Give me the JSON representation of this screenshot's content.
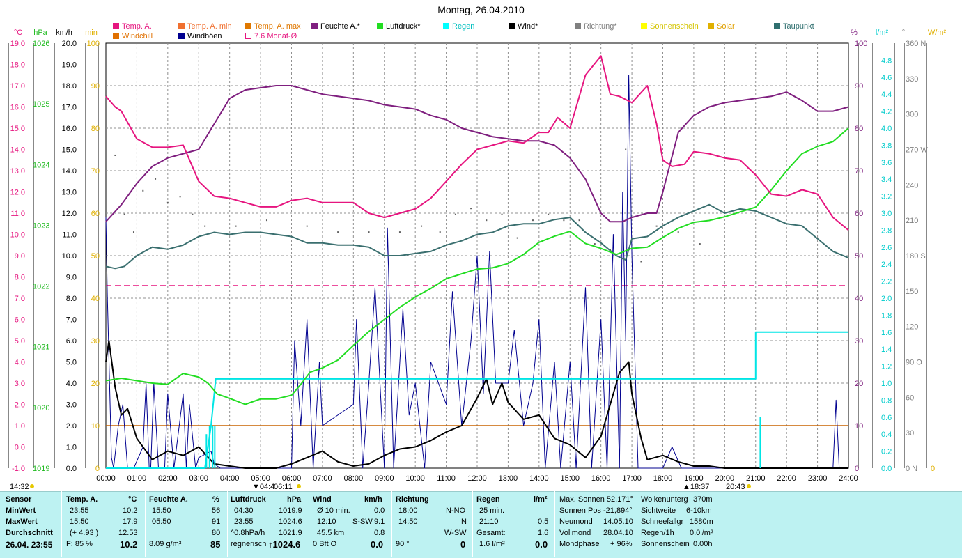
{
  "title": "Montag, 26.04.2010",
  "legend": [
    {
      "label": "Temp. A.",
      "color": "#e6157f"
    },
    {
      "label": "Temp. A. min",
      "color": "#f07030"
    },
    {
      "label": "Temp. A. max",
      "color": "#e07800"
    },
    {
      "label": "Feuchte A.*",
      "color": "#7f1f7f"
    },
    {
      "label": "Luftdruck*",
      "color": "#22dd22"
    },
    {
      "label": "Regen",
      "color": "#00ffff"
    },
    {
      "label": "Wind*",
      "color": "#000000"
    },
    {
      "label": "Richtung*",
      "color": "#808080"
    },
    {
      "label": "Sonnenschein",
      "color": "#ffff00"
    },
    {
      "label": "Solar",
      "color": "#e0b000"
    },
    {
      "label": "Taupunkt",
      "color": "#2f6f6f"
    },
    {
      "label": "Windchill",
      "color": "#e07000"
    },
    {
      "label": "Windböen",
      "color": "#000090"
    },
    {
      "label": "7.6 Monat-Ø",
      "color": "#e6157f"
    }
  ],
  "axis_units": {
    "celsius": "°C",
    "hpa": "hPa",
    "kmh": "km/h",
    "min": "min",
    "pct": "%",
    "lm2": "l/m²",
    "deg": "°",
    "wm2": "W/m²"
  },
  "time_marks": {
    "sunrise": "04:4",
    "sunrise2": "06:11",
    "sunset": "18:37",
    "moon": "20:43",
    "corner": "14:32"
  },
  "chart_data": {
    "type": "line",
    "x_ticks": [
      "00:00",
      "01:00",
      "02:00",
      "03:00",
      "04:00",
      "05:00",
      "06:00",
      "07:00",
      "08:00",
      "09:00",
      "10:00",
      "11:00",
      "12:00",
      "13:00",
      "14:00",
      "15:00",
      "16:00",
      "17:00",
      "18:00",
      "19:00",
      "20:00",
      "21:00",
      "22:00",
      "23:00",
      "24:00"
    ],
    "axes": {
      "celsius": {
        "range": [
          -1,
          19
        ],
        "ticks": [
          "19.0",
          "18.0",
          "17.0",
          "16.0",
          "15.0",
          "14.0",
          "13.0",
          "12.0",
          "11.0",
          "10.0",
          "9.0",
          "8.0",
          "7.0",
          "6.0",
          "5.0",
          "4.0",
          "3.0",
          "2.0",
          "1.0",
          "0.0",
          "-1.0"
        ]
      },
      "hpa": {
        "range": [
          1019,
          1026
        ],
        "ticks": [
          "1026",
          "1025",
          "1024",
          "1023",
          "1022",
          "1021",
          "1020",
          "1019"
        ]
      },
      "kmh": {
        "range": [
          0,
          20
        ],
        "ticks": [
          "20.0",
          "19.0",
          "18.0",
          "17.0",
          "16.0",
          "15.0",
          "14.0",
          "13.0",
          "12.0",
          "11.0",
          "10.0",
          "9.0",
          "8.0",
          "7.0",
          "6.0",
          "5.0",
          "4.0",
          "3.0",
          "2.0",
          "1.0",
          "0.0"
        ]
      },
      "min": {
        "range": [
          0,
          100
        ],
        "ticks": [
          "100",
          "90",
          "80",
          "70",
          "60",
          "50",
          "40",
          "30",
          "20",
          "10",
          "0"
        ]
      },
      "pct": {
        "range": [
          0,
          100
        ],
        "ticks": [
          "100",
          "90",
          "80",
          "70",
          "60",
          "50",
          "40",
          "30",
          "20",
          "10",
          "0"
        ]
      },
      "lm2": {
        "range": [
          0,
          5
        ],
        "ticks": [
          "4.8",
          "4.6",
          "4.4",
          "4.2",
          "4.0",
          "3.8",
          "3.6",
          "3.4",
          "3.2",
          "3.0",
          "2.8",
          "2.6",
          "2.4",
          "2.2",
          "2.0",
          "1.8",
          "1.6",
          "1.4",
          "1.2",
          "1.0",
          "0.8",
          "0.6",
          "0.4",
          "0.2",
          "0.0"
        ]
      },
      "deg": {
        "range": [
          0,
          360
        ],
        "ticks": [
          "360 N",
          "330",
          "300",
          "270 W",
          "240",
          "210",
          "180 S",
          "150",
          "120",
          "90 O",
          "60",
          "30",
          "0 N"
        ]
      },
      "wm2": {
        "range": [
          0,
          0
        ],
        "ticks": [
          "0"
        ]
      }
    },
    "series": [
      {
        "name": "Temp. A.",
        "axis": "celsius",
        "x": [
          0,
          0.3,
          0.5,
          1,
          1.5,
          2,
          2.5,
          3,
          3.5,
          4,
          4.5,
          5,
          5.5,
          6,
          6.5,
          7,
          7.5,
          8,
          8.5,
          9,
          9.5,
          10,
          10.5,
          11,
          11.5,
          12,
          12.5,
          13,
          13.5,
          14,
          14.3,
          14.6,
          15,
          15.5,
          16,
          16.3,
          16.6,
          17,
          17.5,
          17.8,
          18,
          18.3,
          18.7,
          19,
          19.5,
          20,
          20.5,
          21,
          21.5,
          22,
          22.5,
          23,
          23.5,
          24
        ],
        "y": [
          16.5,
          16.0,
          15.8,
          14.5,
          14.1,
          14.1,
          14.2,
          12.5,
          11.8,
          11.7,
          11.5,
          11.3,
          11.3,
          11.6,
          11.7,
          11.5,
          11.5,
          11.5,
          11.0,
          10.8,
          11.0,
          11.2,
          11.7,
          12.5,
          13.3,
          14.0,
          14.2,
          14.4,
          14.3,
          14.8,
          14.8,
          15.5,
          15.0,
          17.5,
          18.4,
          16.6,
          16.5,
          16.2,
          17.0,
          15.2,
          13.5,
          13.2,
          13.3,
          13.9,
          13.8,
          13.6,
          13.5,
          12.8,
          11.9,
          11.8,
          12.1,
          11.9,
          10.8,
          10.2
        ]
      },
      {
        "name": "Feuchte A.*",
        "axis": "pct",
        "x": [
          0,
          0.5,
          1,
          1.5,
          2,
          2.5,
          3,
          3.5,
          4,
          4.5,
          5,
          5.5,
          6,
          6.5,
          7,
          7.5,
          8,
          8.5,
          9,
          9.5,
          10,
          10.5,
          11,
          11.5,
          12,
          12.5,
          13,
          13.5,
          14,
          14.5,
          15,
          15.5,
          16,
          16.3,
          16.7,
          17,
          17.5,
          17.8,
          18,
          18.5,
          19,
          19.5,
          20,
          20.5,
          21,
          21.5,
          22,
          22.5,
          23,
          23.5,
          24
        ],
        "y": [
          58,
          62,
          67,
          71,
          73,
          74,
          75,
          81,
          87,
          89,
          89.5,
          90,
          90,
          89,
          88,
          87.5,
          87,
          86.5,
          85.5,
          85,
          84.5,
          83,
          82,
          80,
          79,
          78,
          77.5,
          77,
          77,
          76,
          73,
          68,
          60,
          58,
          58,
          59,
          60,
          60,
          65,
          79,
          83,
          85,
          86,
          86.5,
          87,
          87.5,
          88.5,
          86.5,
          84,
          84,
          85
        ]
      },
      {
        "name": "Luftdruck*",
        "axis": "hpa",
        "x": [
          0,
          0.5,
          1,
          1.5,
          2,
          2.5,
          3,
          3.3,
          3.6,
          4,
          4.5,
          5,
          5.5,
          6,
          6.3,
          6.6,
          7,
          7.5,
          8,
          8.5,
          9,
          9.5,
          10,
          10.5,
          11,
          11.5,
          12,
          12.5,
          13,
          13.5,
          14,
          14.5,
          15,
          15.5,
          16,
          16.5,
          17,
          17.5,
          18,
          18.5,
          19,
          19.5,
          20,
          20.5,
          21,
          21.5,
          22,
          22.5,
          23,
          23.5,
          24
        ],
        "y": [
          1020.44,
          1020.48,
          1020.44,
          1020.4,
          1020.38,
          1020.56,
          1020.5,
          1020.4,
          1020.22,
          1020.15,
          1020.05,
          1020.14,
          1020.14,
          1020.2,
          1020.38,
          1020.58,
          1020.65,
          1020.78,
          1021.02,
          1021.25,
          1021.45,
          1021.65,
          1021.82,
          1021.96,
          1022.12,
          1022.2,
          1022.28,
          1022.3,
          1022.37,
          1022.52,
          1022.72,
          1022.82,
          1022.9,
          1022.7,
          1022.62,
          1022.52,
          1022.62,
          1022.64,
          1022.8,
          1022.95,
          1023.05,
          1023.08,
          1023.14,
          1023.22,
          1023.3,
          1023.58,
          1023.9,
          1024.18,
          1024.3,
          1024.38,
          1024.6
        ]
      },
      {
        "name": "Taupunkt",
        "axis": "celsius",
        "x": [
          0,
          0.3,
          0.6,
          1,
          1.5,
          2,
          2.5,
          3,
          3.5,
          4,
          4.5,
          5,
          5.5,
          6,
          6.5,
          7,
          7.5,
          8,
          8.5,
          9,
          9.5,
          10,
          10.5,
          11,
          11.5,
          12,
          12.5,
          13,
          13.5,
          14,
          14.5,
          15,
          15.5,
          16,
          16.5,
          16.8,
          17,
          17.5,
          18,
          18.5,
          19,
          19.5,
          20,
          20.5,
          21,
          21.5,
          22,
          22.5,
          23,
          23.5,
          24
        ],
        "y": [
          8.5,
          8.4,
          8.5,
          9.0,
          9.4,
          9.3,
          9.5,
          9.9,
          10.1,
          10.0,
          10.1,
          10.1,
          10.0,
          9.9,
          9.6,
          9.6,
          9.5,
          9.5,
          9.4,
          9.0,
          9.0,
          9.1,
          9.2,
          9.5,
          9.7,
          10.0,
          10.1,
          10.4,
          10.5,
          10.5,
          10.7,
          10.8,
          10.1,
          9.6,
          9.0,
          8.8,
          9.8,
          9.9,
          10.4,
          10.8,
          11.1,
          11.4,
          11.0,
          11.2,
          11.1,
          10.8,
          10.5,
          10.4,
          9.8,
          9.2,
          8.9
        ]
      },
      {
        "name": "Regen",
        "axis": "lm2",
        "x": [
          0,
          3.2,
          3.4,
          3.55,
          21.0,
          21.0,
          21.1,
          24
        ],
        "y": [
          0,
          0,
          0.5,
          1.05,
          1.05,
          1.6,
          1.6,
          1.6
        ]
      },
      {
        "name": "Wind*",
        "axis": "kmh",
        "x": [
          0,
          0.1,
          0.3,
          0.5,
          0.7,
          1,
          1.5,
          2,
          2.5,
          3,
          3.5,
          4,
          4.5,
          5,
          5.5,
          6,
          6.5,
          7,
          7.5,
          8,
          8.5,
          9,
          9.5,
          10,
          10.5,
          11,
          11.5,
          12,
          12.3,
          12.5,
          12.8,
          13,
          13.5,
          14,
          14.5,
          15,
          15.5,
          16,
          16.3,
          16.6,
          16.9,
          17,
          17.3,
          17.5,
          18,
          18.5,
          19,
          19.5,
          20,
          20.5,
          21,
          22,
          23,
          24
        ],
        "y": [
          5.0,
          6.0,
          3.8,
          2.5,
          2.8,
          1.4,
          0.4,
          0.8,
          0.6,
          1.0,
          0.2,
          0.1,
          0.0,
          0.0,
          0.0,
          0.2,
          0.5,
          0.8,
          0.3,
          0.1,
          0.2,
          0.6,
          0.9,
          1.0,
          1.3,
          1.7,
          2.0,
          3.3,
          4.2,
          3.0,
          4.0,
          3.1,
          2.3,
          2.5,
          1.4,
          1.1,
          0.5,
          1.5,
          3.0,
          4.5,
          5.0,
          3.5,
          1.4,
          0.4,
          0.6,
          0.3,
          0.1,
          0.1,
          0,
          0,
          0,
          0,
          0,
          0
        ]
      },
      {
        "name": "Windböen",
        "axis": "kmh",
        "x": [
          0,
          0.05,
          0.12,
          0.18,
          0.25,
          0.4,
          0.55,
          0.7,
          0.9,
          1.2,
          1.3,
          1.4,
          1.45,
          1.55,
          1.7,
          1.9,
          2.0,
          2.2,
          2.5,
          2.6,
          2.7,
          2.9,
          3.0,
          3.4,
          3.5,
          3.7,
          6.0,
          6.1,
          6.3,
          6.5,
          6.7,
          6.9,
          7.0,
          8.0,
          8.1,
          8.3,
          8.5,
          8.7,
          9.0,
          9.1,
          9.3,
          9.6,
          9.8,
          10.0,
          10.3,
          10.5,
          11.0,
          11.2,
          11.5,
          11.8,
          12.0,
          12.2,
          12.4,
          12.6,
          13.0,
          13.2,
          13.5,
          13.8,
          14.0,
          14.2,
          14.5,
          14.7,
          15.0,
          15.2,
          15.5,
          15.7,
          16.0,
          16.2,
          16.4,
          16.6,
          16.7,
          16.8,
          16.9,
          17.0,
          17.2,
          17.4,
          18.0,
          18.3,
          18.6,
          19,
          19.5,
          20,
          23.5,
          23.6,
          23.7,
          24
        ],
        "y": [
          11.8,
          8.0,
          4.0,
          0.5,
          0,
          2.0,
          3.0,
          0,
          0,
          1.0,
          4.0,
          0,
          0,
          4.0,
          0,
          0,
          3.5,
          0,
          3.5,
          0,
          3.0,
          0,
          0.5,
          0.8,
          0.2,
          0,
          0,
          6.0,
          2.0,
          7.0,
          0,
          5.0,
          2.0,
          3.0,
          7.0,
          0,
          4.0,
          8.5,
          0,
          11.3,
          0,
          7.5,
          2.5,
          4.0,
          0,
          5.0,
          3.0,
          8.3,
          2.0,
          6.0,
          10.0,
          3.5,
          10.2,
          4.0,
          4.0,
          6.5,
          2.0,
          4.0,
          7.0,
          0,
          5.0,
          0,
          5.0,
          0,
          8.5,
          0,
          7.0,
          0,
          11.0,
          0,
          13.0,
          6.0,
          18.5,
          10.0,
          0,
          0,
          0,
          1.0,
          0,
          0,
          0,
          0,
          0,
          3.2,
          0,
          0
        ]
      },
      {
        "name": "Richtung*",
        "axis": "deg",
        "x": [
          0.3,
          0.6,
          0.9,
          1.2,
          1.6,
          2.0,
          2.4,
          2.8,
          3.2,
          4.2,
          5.2,
          6.5,
          7.5,
          8.5,
          9.5,
          10.2,
          10.8,
          11.3,
          11.8,
          12.3,
          12.8,
          13.3,
          13.8,
          14.3,
          14.8,
          15.3,
          15.8,
          16.3,
          16.8,
          17.3,
          17.8,
          18.5,
          19.2
        ],
        "y": [
          265,
          215,
          200,
          235,
          245,
          225,
          230,
          215,
          205,
          205,
          210,
          205,
          200,
          200,
          200,
          205,
          200,
          215,
          220,
          210,
          215,
          195,
          210,
          215,
          210,
          210,
          190,
          185,
          270,
          175,
          205,
          200,
          190
        ]
      },
      {
        "name": "Windchill",
        "axis": "celsius",
        "x": [
          0,
          24
        ],
        "y": [
          1.0,
          1.0
        ]
      },
      {
        "name": "7.6 Monat-Ø",
        "axis": "celsius",
        "x": [
          0,
          24
        ],
        "y": [
          7.6,
          7.6
        ]
      }
    ]
  },
  "table": {
    "col_sensor": {
      "header": "Sensor",
      "rows": [
        "MinWert",
        "MaxWert",
        "Durchschnitt",
        "26.04. 23:55"
      ]
    },
    "temp": {
      "header": "Temp. A.",
      "unit": "°C",
      "r1t": "23:55",
      "r1v": "10.2",
      "r2t": "15:50",
      "r2v": "17.9",
      "r3t": "(+ 4.93 )",
      "r3v": "12.53",
      "r4t": "F: 85 %",
      "r4v": "10.2"
    },
    "hum": {
      "header": "Feuchte A.",
      "unit": "%",
      "r1t": "15:50",
      "r1v": "56",
      "r2t": "05:50",
      "r2v": "91",
      "r3v": "80",
      "r4t": "8.09 g/m³",
      "r4v": "85"
    },
    "press": {
      "header": "Luftdruck",
      "unit": "hPa",
      "r1t": "04:30",
      "r1v": "1019.9",
      "r2t": "23:55",
      "r2v": "1024.6",
      "r3t": "^0.8hPa/h",
      "r3v": "1021.9",
      "r4t": "regnerisch",
      "r4v": "↑1024.6"
    },
    "wind": {
      "header": "Wind",
      "unit": "km/h",
      "r1t": "Ø 10 min.",
      "r1v": "0.0",
      "r2t": "12:10",
      "r2d": "S-SW",
      "r2v": "9.1",
      "r3t": "45.5 km",
      "r3v": "0.8",
      "r4t": "0 Bft O",
      "r4v": "0.0"
    },
    "dir": {
      "header": "Richtung",
      "r1t": "18:00",
      "r1v": "N-NO",
      "r2t": "14:50",
      "r2v": "N",
      "r3v": "W-SW",
      "r4t": "90 °",
      "r4v": "0"
    },
    "rain": {
      "header": "Regen",
      "unit": "l/m²",
      "r1t": "25 min.",
      "r2t": "21:10",
      "r2v": "0.5",
      "r3t": "Gesamt:",
      "r3v": "1.6",
      "r4t": "1.6 l/m²",
      "r4v": "0.0"
    },
    "sun": {
      "r1": "Max. Sonnen 52,171°",
      "r2": "Sonnen Pos -21,894°",
      "r3a": "Neumond",
      "r3b": "14.05.10",
      "r4a": "Vollmond",
      "r4b": "28.04.10",
      "r5a": "Mondphase",
      "r5b": "+ 96%"
    },
    "misc": {
      "r1a": "Wolkenunterg",
      "r1b": "370m",
      "r2a": "Sichtweite",
      "r2b": "6-10km",
      "r3a": "Schneefallgr",
      "r3b": "1580m",
      "r4a": "Regen/1h",
      "r4b": "0.0l/m²",
      "r5a": "Sonnenschein",
      "r5b": "0.00h"
    }
  }
}
